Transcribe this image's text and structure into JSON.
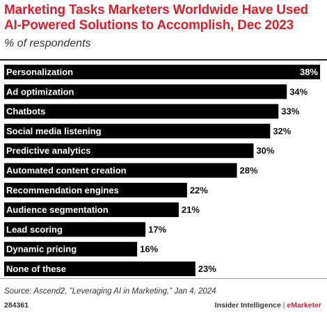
{
  "title": "Marketing Tasks Marketers Worldwide Have Used AI-Powered Solutions to Accomplish, Dec 2023",
  "subtitle": "% of respondents",
  "source": "Source: Ascend2, \"Leveraging AI in Marketing,\" Jan 4, 2024",
  "footer": {
    "id": "284361",
    "brand_left": "Insider Intelligence",
    "separator": "|",
    "brand_right": "eMarketer"
  },
  "colors": {
    "bar": "#000000",
    "title": "#e11d2a",
    "accent": "#e11d2a"
  },
  "chart_data": {
    "type": "bar",
    "orientation": "horizontal",
    "title": "Marketing Tasks Marketers Worldwide Have Used AI-Powered Solutions to Accomplish, Dec 2023",
    "subtitle": "% of respondents",
    "categories": [
      "Personalization",
      "Ad optimization",
      "Chatbots",
      "Social media listening",
      "Predictive analytics",
      "Automated content creation",
      "Recommendation engines",
      "Audience segmentation",
      "Lead scoring",
      "Dynamic pricing",
      "None of these"
    ],
    "values": [
      38,
      34,
      33,
      32,
      30,
      28,
      22,
      21,
      17,
      16,
      23
    ],
    "value_labels": [
      "38%",
      "34%",
      "33%",
      "32%",
      "30%",
      "28%",
      "22%",
      "21%",
      "17%",
      "16%",
      "23%"
    ],
    "xlim": [
      0,
      38
    ],
    "grid": false,
    "legend": "none"
  }
}
